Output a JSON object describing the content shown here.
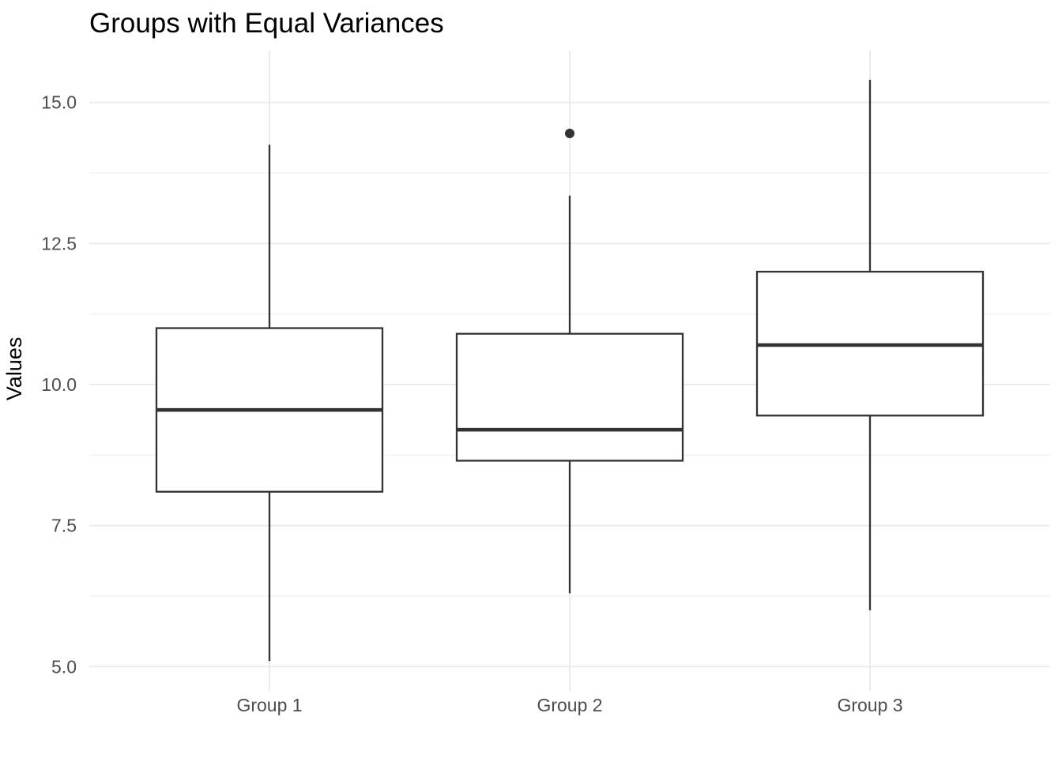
{
  "chart_data": {
    "type": "boxplot",
    "title": "Groups with Equal Variances",
    "xlabel": "",
    "ylabel": "Values",
    "categories": [
      "Group 1",
      "Group 2",
      "Group 3"
    ],
    "y_ticks": [
      5.0,
      7.5,
      10.0,
      12.5,
      15.0
    ],
    "y_tick_labels": [
      "5.0",
      "7.5",
      "10.0",
      "12.5",
      "15.0"
    ],
    "y_minor_ticks": [
      6.25,
      8.75,
      11.25,
      13.75
    ],
    "ylim": [
      4.57,
      15.92
    ],
    "grid": "major and minor horizontal, major vertical at each category",
    "legend": false,
    "series": [
      {
        "name": "Group 1",
        "whisker_low": 5.1,
        "q1": 8.1,
        "median": 9.55,
        "q3": 11.0,
        "whisker_high": 14.25,
        "outliers": []
      },
      {
        "name": "Group 2",
        "whisker_low": 6.3,
        "q1": 8.65,
        "median": 9.2,
        "q3": 10.9,
        "whisker_high": 13.35,
        "outliers": [
          14.45
        ]
      },
      {
        "name": "Group 3",
        "whisker_low": 6.0,
        "q1": 9.45,
        "median": 10.7,
        "q3": 12.0,
        "whisker_high": 15.4,
        "outliers": []
      }
    ],
    "colors": {
      "background": "#ffffff",
      "box_stroke": "#333333",
      "box_fill": "#ffffff",
      "median_stroke": "#333333",
      "outlier_fill": "#333333",
      "grid_major": "#ebebeb",
      "grid_minor": "#f1f1f1",
      "tick_text": "#4d4d4d",
      "title_text": "#000000"
    }
  }
}
